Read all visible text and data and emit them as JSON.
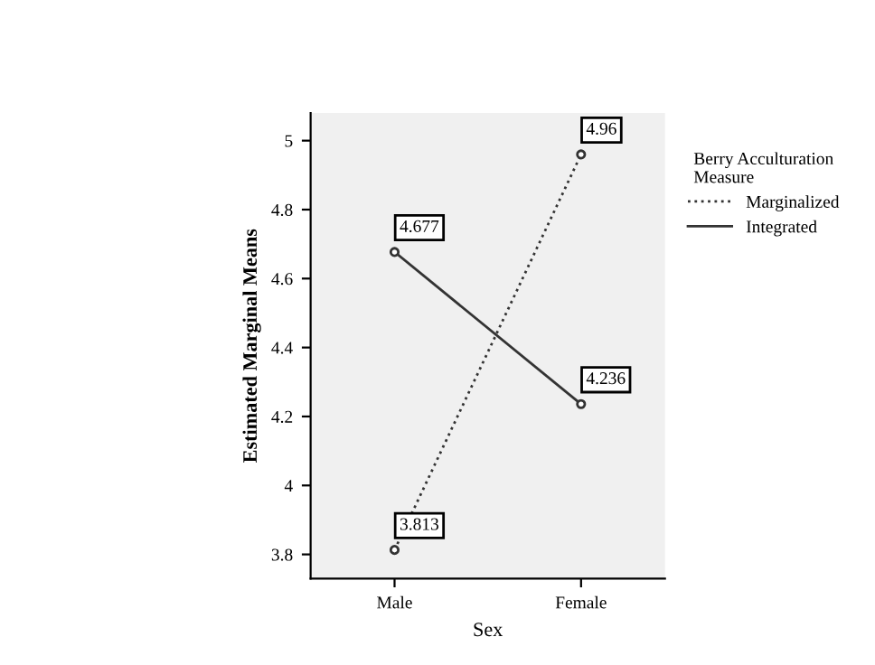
{
  "chart_data": {
    "type": "line",
    "xlabel": "Sex",
    "ylabel": "Estimated Marginal Means",
    "legend_title": "Berry Acculturation\nMeasure",
    "categories": [
      "Male",
      "Female"
    ],
    "series": [
      {
        "name": "Marginalized",
        "color": "#333333",
        "values": [
          3.813,
          4.96
        ],
        "line_style": "dotted"
      },
      {
        "name": "Integrated",
        "color": "#333333",
        "values": [
          4.677,
          4.236
        ],
        "line_style": "solid"
      }
    ],
    "ylim": [
      3.73,
      5.08
    ],
    "yticks": [
      3.8,
      4,
      4.2,
      4.4,
      4.6,
      4.8,
      5
    ],
    "grid": false,
    "legend": "top right",
    "marker": "circle",
    "data_labels": true
  }
}
